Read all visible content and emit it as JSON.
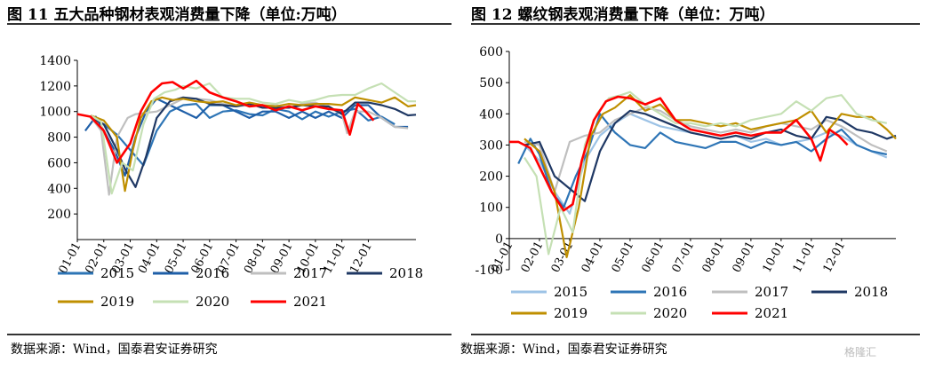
{
  "titles": {
    "left": "图 11 五大品种钢材表观消费量下降（单位:万吨）",
    "right": "图 12 螺纹钢表观消费量下降（单位：万吨）"
  },
  "sources": {
    "left": "数据来源：Wind，国泰君安证券研究",
    "right": "数据来源：Wind，国泰君安证券研究"
  },
  "watermark": "格隆汇",
  "chart_data": [
    {
      "type": "line",
      "x_ticks": [
        "01-01",
        "02-01",
        "03-01",
        "04-01",
        "05-01",
        "06-01",
        "07-01",
        "08-01",
        "09-01",
        "10-01",
        "11-01",
        "12-01"
      ],
      "ylim": [
        0,
        1400
      ],
      "y_ticks": [
        200,
        400,
        600,
        800,
        1000,
        1200,
        1400
      ],
      "series": [
        {
          "name": "2015",
          "color": "#2e75b6",
          "x": [
            0.5,
            1.0,
            1.5,
            2.0,
            2.5,
            3.0,
            3.5,
            4.0,
            4.5,
            5.0,
            5.5,
            6.0,
            6.5,
            7.0,
            7.5,
            8.0,
            8.5,
            9.0,
            9.5,
            10.0,
            10.5,
            11.0,
            11.5,
            12.0
          ],
          "y": [
            950,
            900,
            820,
            700,
            580,
            850,
            1000,
            1050,
            1060,
            950,
            1000,
            1010,
            980,
            970,
            1020,
            1000,
            940,
            1000,
            960,
            1000,
            1020,
            930,
            960,
            900
          ]
        },
        {
          "name": "2016",
          "color": "#1f5fa8",
          "x": [
            0.3,
            0.7,
            1.0,
            1.4,
            1.8,
            2.2,
            2.6,
            3.0,
            3.5,
            4.0,
            4.5,
            5.0,
            5.5,
            6.0,
            6.5,
            7.0,
            7.5,
            8.0,
            8.5,
            9.0,
            9.5,
            10.0,
            10.5,
            11.0,
            11.5,
            12.0,
            12.5
          ],
          "y": [
            850,
            960,
            850,
            700,
            500,
            800,
            1000,
            1100,
            1050,
            1000,
            950,
            1050,
            1050,
            1000,
            950,
            1000,
            1000,
            950,
            1000,
            950,
            1000,
            950,
            1050,
            1050,
            950,
            880,
            880
          ]
        },
        {
          "name": "2017",
          "color": "#bfbfbf",
          "x": [
            0.5,
            0.9,
            1.2,
            1.5,
            1.9,
            2.2,
            2.6,
            3.0,
            3.5,
            4.0,
            4.5,
            5.0,
            5.5,
            6.0,
            6.5,
            7.0,
            7.5,
            8.0,
            8.5,
            9.0,
            9.5,
            10.0,
            10.2,
            10.5,
            11.0,
            11.5,
            12.0,
            12.5
          ],
          "y": [
            960,
            850,
            350,
            800,
            950,
            980,
            990,
            1000,
            1050,
            1100,
            1100,
            1090,
            1060,
            1040,
            1050,
            1040,
            1050,
            1030,
            1060,
            1070,
            1030,
            980,
            830,
            1000,
            1000,
            950,
            880,
            870
          ]
        },
        {
          "name": "2018",
          "color": "#1f3864",
          "x": [
            0.5,
            1.0,
            1.5,
            1.8,
            2.2,
            2.6,
            3.0,
            3.5,
            4.0,
            4.5,
            5.0,
            5.5,
            6.0,
            6.5,
            7.0,
            7.5,
            8.0,
            8.5,
            9.0,
            9.5,
            10.0,
            10.5,
            11.0,
            11.5,
            12.0,
            12.5,
            12.8
          ],
          "y": [
            960,
            900,
            700,
            550,
            410,
            650,
            950,
            1080,
            1110,
            1100,
            1060,
            1050,
            1040,
            1060,
            1030,
            1030,
            1030,
            1050,
            1040,
            1040,
            980,
            1070,
            1070,
            1050,
            1020,
            970,
            975
          ]
        },
        {
          "name": "2019",
          "color": "#bf8f00",
          "x": [
            0.5,
            1.0,
            1.5,
            1.8,
            2.1,
            2.4,
            2.8,
            3.2,
            3.6,
            4.0,
            4.5,
            5.0,
            5.5,
            6.0,
            6.5,
            7.0,
            7.5,
            8.0,
            8.5,
            9.0,
            9.5,
            10.0,
            10.5,
            11.0,
            11.5,
            12.0,
            12.5,
            12.8
          ],
          "y": [
            970,
            930,
            800,
            380,
            700,
            950,
            1080,
            1110,
            1090,
            1100,
            1080,
            1070,
            1080,
            1050,
            1070,
            1050,
            1040,
            1060,
            1050,
            1060,
            1060,
            1050,
            1110,
            1090,
            1070,
            1110,
            1040,
            1050
          ]
        },
        {
          "name": "2020",
          "color": "#c5e0b4",
          "x": [
            0.5,
            0.9,
            1.3,
            1.7,
            2.1,
            2.5,
            2.9,
            3.3,
            3.7,
            4.0,
            4.5,
            5.0,
            5.5,
            6.0,
            6.5,
            7.0,
            7.5,
            8.0,
            8.5,
            9.0,
            9.5,
            10.0,
            10.5,
            11.0,
            11.5,
            12.0,
            12.5,
            12.8
          ],
          "y": [
            970,
            920,
            360,
            600,
            540,
            900,
            1100,
            1150,
            1170,
            1200,
            1180,
            1220,
            1110,
            1100,
            1100,
            1070,
            1060,
            1090,
            1070,
            1090,
            1120,
            1130,
            1130,
            1180,
            1220,
            1150,
            1080,
            1080
          ]
        },
        {
          "name": "2021",
          "color": "#ff0000",
          "x": [
            0.0,
            0.5,
            1.0,
            1.5,
            2.0,
            2.4,
            2.8,
            3.2,
            3.6,
            4.0,
            4.5,
            5.0,
            5.5,
            6.0,
            6.5,
            7.0,
            7.5,
            8.0,
            8.5,
            9.0,
            9.5,
            10.0,
            10.3,
            10.6,
            10.9,
            11.2
          ],
          "y": [
            980,
            960,
            850,
            600,
            750,
            1000,
            1150,
            1220,
            1230,
            1180,
            1240,
            1150,
            1110,
            1080,
            1040,
            1050,
            1010,
            1040,
            1010,
            1040,
            1020,
            1010,
            820,
            1060,
            1000,
            930
          ]
        }
      ]
    },
    {
      "type": "line",
      "x_ticks": [
        "01-01",
        "02-01",
        "03-01",
        "04-01",
        "05-01",
        "06-01",
        "07-01",
        "08-01",
        "09-01",
        "10-01",
        "11-01",
        "12-01"
      ],
      "ylim": [
        -100,
        600
      ],
      "y_ticks": [
        -100,
        0,
        100,
        200,
        300,
        400,
        500,
        600
      ],
      "series": [
        {
          "name": "2015",
          "color": "#9dc3e6",
          "x": [
            0.5,
            1.0,
            1.5,
            2.0,
            2.5,
            3.0,
            3.5,
            4.0,
            4.5,
            5.0,
            5.5,
            6.0,
            6.5,
            7.0,
            7.5,
            8.0,
            8.5,
            9.0,
            9.5,
            10.0,
            10.5,
            11.0,
            11.5,
            12.0,
            12.5
          ],
          "y": [
            300,
            250,
            150,
            80,
            250,
            330,
            370,
            400,
            380,
            360,
            350,
            340,
            330,
            320,
            330,
            310,
            320,
            300,
            310,
            320,
            340,
            330,
            300,
            280,
            260
          ]
        },
        {
          "name": "2016",
          "color": "#2e75b6",
          "x": [
            0.3,
            0.7,
            1.0,
            1.4,
            1.8,
            2.2,
            2.6,
            3.0,
            3.5,
            4.0,
            4.5,
            5.0,
            5.5,
            6.0,
            6.5,
            7.0,
            7.5,
            8.0,
            8.5,
            9.0,
            9.5,
            10.0,
            10.5,
            11.0,
            11.5,
            12.0,
            12.5
          ],
          "y": [
            240,
            320,
            270,
            150,
            100,
            200,
            280,
            400,
            340,
            300,
            290,
            340,
            310,
            300,
            290,
            310,
            310,
            290,
            310,
            300,
            310,
            280,
            320,
            350,
            300,
            280,
            270
          ]
        },
        {
          "name": "2017",
          "color": "#bfbfbf",
          "x": [
            0.5,
            1.0,
            1.5,
            2.0,
            2.5,
            3.0,
            3.5,
            4.0,
            4.5,
            5.0,
            5.5,
            6.0,
            6.5,
            7.0,
            7.5,
            8.0,
            8.5,
            9.0,
            9.5,
            10.0,
            10.5,
            11.0,
            11.5,
            12.0,
            12.5
          ],
          "y": [
            310,
            300,
            150,
            310,
            330,
            340,
            380,
            400,
            420,
            410,
            380,
            360,
            350,
            340,
            350,
            340,
            360,
            370,
            360,
            350,
            380,
            360,
            330,
            300,
            280
          ]
        },
        {
          "name": "2018",
          "color": "#1f3864",
          "x": [
            0.5,
            1.0,
            1.5,
            2.0,
            2.5,
            3.0,
            3.5,
            4.0,
            4.5,
            5.0,
            5.5,
            6.0,
            6.5,
            7.0,
            7.5,
            8.0,
            8.5,
            9.0,
            9.5,
            10.0,
            10.5,
            11.0,
            11.5,
            12.0,
            12.5,
            12.8
          ],
          "y": [
            300,
            310,
            200,
            160,
            120,
            280,
            370,
            410,
            400,
            380,
            360,
            340,
            330,
            320,
            330,
            320,
            340,
            350,
            330,
            320,
            390,
            380,
            350,
            340,
            320,
            330
          ]
        },
        {
          "name": "2019",
          "color": "#bf8f00",
          "x": [
            0.5,
            1.0,
            1.5,
            1.9,
            2.3,
            2.7,
            3.1,
            3.5,
            4.0,
            4.5,
            5.0,
            5.5,
            6.0,
            6.5,
            7.0,
            7.5,
            8.0,
            8.5,
            9.0,
            9.5,
            10.0,
            10.5,
            11.0,
            11.5,
            12.0,
            12.5,
            12.8
          ],
          "y": [
            320,
            280,
            150,
            -60,
            100,
            330,
            400,
            420,
            460,
            410,
            430,
            380,
            380,
            370,
            360,
            370,
            350,
            360,
            370,
            380,
            410,
            340,
            400,
            390,
            390,
            350,
            320
          ]
        },
        {
          "name": "2020",
          "color": "#c5e0b4",
          "x": [
            0.5,
            0.9,
            1.3,
            1.7,
            2.1,
            2.5,
            2.9,
            3.3,
            3.7,
            4.0,
            4.5,
            5.0,
            5.5,
            6.0,
            6.5,
            7.0,
            7.5,
            8.0,
            8.5,
            9.0,
            9.5,
            10.0,
            10.5,
            11.0,
            11.5,
            12.0,
            12.5
          ],
          "y": [
            260,
            200,
            -50,
            100,
            20,
            300,
            400,
            450,
            460,
            470,
            430,
            400,
            370,
            370,
            360,
            370,
            360,
            380,
            390,
            400,
            440,
            410,
            450,
            460,
            400,
            380,
            370
          ]
        },
        {
          "name": "2021",
          "color": "#ff0000",
          "x": [
            0.0,
            0.3,
            0.7,
            1.0,
            1.4,
            1.8,
            2.1,
            2.4,
            2.8,
            3.2,
            3.6,
            4.0,
            4.5,
            5.0,
            5.5,
            6.0,
            6.5,
            7.0,
            7.5,
            8.0,
            8.5,
            9.0,
            9.5,
            10.0,
            10.3,
            10.6,
            10.9,
            11.2
          ],
          "y": [
            310,
            310,
            290,
            230,
            150,
            90,
            110,
            250,
            380,
            440,
            455,
            450,
            430,
            450,
            380,
            350,
            340,
            330,
            340,
            330,
            340,
            340,
            380,
            320,
            250,
            350,
            330,
            300
          ]
        }
      ]
    }
  ]
}
